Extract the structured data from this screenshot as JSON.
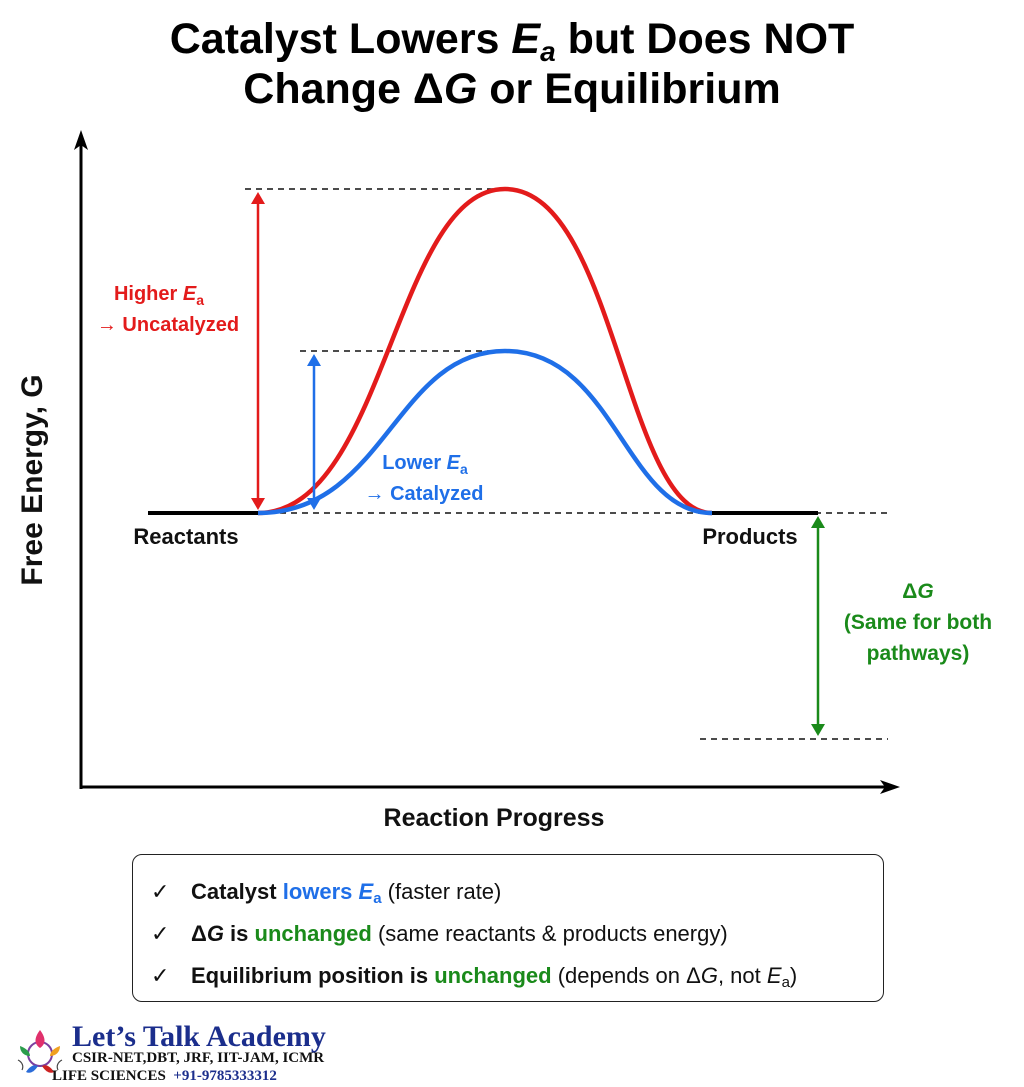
{
  "title": {
    "line1_a": "Catalyst Lowers ",
    "line1_ea": "E",
    "line1_ea_sub": "a",
    "line1_b": " but Does NOT",
    "line2_a": "Change Δ",
    "line2_g": "G",
    "line2_b": " or Equilibrium"
  },
  "axes": {
    "y_label": "Free Energy, G",
    "x_label": "Reaction Progress"
  },
  "levels": {
    "reactants": "Reactants",
    "products": "Products"
  },
  "uncatalyzed": {
    "line1_prefix": "Higher ",
    "line1_e": "E",
    "line1_sub": "a",
    "line2": "→ Uncatalyzed",
    "color": "#e31b1b"
  },
  "catalyzed": {
    "line1_prefix": "Lower ",
    "line1_e": "E",
    "line1_sub": "a",
    "line2": "→ Catalyzed",
    "color": "#1f6fe8"
  },
  "delta_g": {
    "symbol_prefix": "Δ",
    "symbol_g": "G",
    "line2": "(Same for both",
    "line3": "pathways)",
    "color": "#1a8a1a"
  },
  "summary": [
    {
      "check": "✓",
      "p1": "Catalyst ",
      "highlight": "lowers ",
      "h_e": "E",
      "h_sub": "a",
      "rest": " (faster rate)"
    },
    {
      "check": "✓",
      "p1_delta": "Δ",
      "p1_g": "G",
      "p1b": " is ",
      "highlight": "unchanged",
      "rest": " (same reactants & products energy)"
    },
    {
      "check": "✓",
      "p1": "Equilibrium position is ",
      "highlight": "unchanged",
      "rest_a": " (depends on Δ",
      "rest_g": "G",
      "rest_b": ", not ",
      "rest_e": "E",
      "rest_sub": "a",
      "rest_c": ")"
    }
  ],
  "logo": {
    "name": "Let’s Talk Academy",
    "line1": "CSIR-NET,DBT, JRF, IIT-JAM, ICMR",
    "line2_a": "LIFE SCIENCES",
    "line2_phone": "+91-9785333312"
  }
}
